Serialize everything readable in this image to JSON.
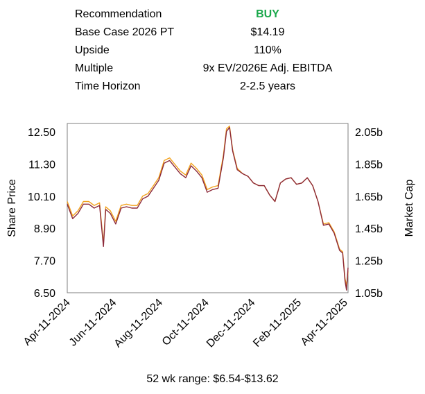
{
  "summary": {
    "rows": [
      {
        "label": "Recommendation",
        "value": "BUY",
        "color": "#1aa84b"
      },
      {
        "label": "Base Case 2026 PT",
        "value": "$14.19"
      },
      {
        "label": "Upside",
        "value": "110%"
      },
      {
        "label": "Multiple",
        "value": "9x EV/2026E Adj. EBITDA"
      },
      {
        "label": "Time Horizon",
        "value": "2-2.5 years"
      }
    ]
  },
  "footnote": "52 wk range: $6.54-$13.62",
  "chart_data": {
    "type": "line",
    "xlabel": "",
    "ylabel": "Share Price",
    "ylabel_right": "Market Cap",
    "ylim": [
      6.5,
      12.9
    ],
    "y_ticks": [
      "12.50",
      "11.30",
      "10.10",
      "8.90",
      "7.70",
      "6.50"
    ],
    "y_ticks_right": [
      "2.05b",
      "1.85b",
      "1.65b",
      "1.45b",
      "1.25b",
      "1.05b"
    ],
    "x_ticks": [
      "Apr-11-2024",
      "Jun-11-2024",
      "Aug-11-2024",
      "Oct-11-2024",
      "Dec-11-2024",
      "Feb-11-2025",
      "Apr-11-2025"
    ],
    "grid": false,
    "series": [
      {
        "color": "#f2a21d",
        "x": [
          "2024-04-11",
          "2024-04-18",
          "2024-04-25",
          "2024-05-02",
          "2024-05-09",
          "2024-05-16",
          "2024-05-23",
          "2024-05-28",
          "2024-05-31",
          "2024-06-06",
          "2024-06-13",
          "2024-06-20",
          "2024-06-27",
          "2024-07-04",
          "2024-07-11",
          "2024-07-18",
          "2024-07-25",
          "2024-08-01",
          "2024-08-08",
          "2024-08-15",
          "2024-08-22",
          "2024-08-29",
          "2024-09-05",
          "2024-09-12",
          "2024-09-19",
          "2024-09-26",
          "2024-10-03",
          "2024-10-10",
          "2024-10-17",
          "2024-10-24",
          "2024-10-31",
          "2024-11-04",
          "2024-11-08",
          "2024-11-12",
          "2024-11-18",
          "2024-11-25",
          "2024-12-02",
          "2024-12-09",
          "2024-12-16",
          "2024-12-23",
          "2024-12-30",
          "2025-01-06",
          "2025-01-13",
          "2025-01-20",
          "2025-01-27",
          "2025-02-03",
          "2025-02-10",
          "2025-02-17",
          "2025-02-24",
          "2025-03-03",
          "2025-03-10",
          "2025-03-17",
          "2025-03-24",
          "2025-03-31",
          "2025-04-04",
          "2025-04-07",
          "2025-04-09",
          "2025-04-11"
        ],
        "values": [
          9.95,
          9.4,
          9.6,
          9.95,
          9.95,
          9.8,
          9.9,
          8.35,
          9.75,
          9.6,
          9.2,
          9.8,
          9.85,
          9.8,
          9.8,
          10.15,
          10.25,
          10.55,
          10.85,
          11.5,
          11.6,
          11.35,
          11.1,
          10.95,
          11.4,
          11.2,
          10.95,
          10.4,
          10.5,
          10.55,
          11.7,
          12.7,
          12.8,
          11.9,
          11.2,
          11.0,
          10.9,
          10.65,
          10.55,
          10.55,
          10.2,
          9.95,
          10.65,
          10.8,
          10.85,
          10.6,
          10.65,
          10.85,
          10.55,
          9.95,
          9.1,
          9.15,
          8.8,
          8.15,
          8.05,
          7.05,
          6.75,
          7.3
        ]
      },
      {
        "color": "#8c2a3a",
        "x": [
          "2024-04-11",
          "2024-04-18",
          "2024-04-25",
          "2024-05-02",
          "2024-05-09",
          "2024-05-16",
          "2024-05-23",
          "2024-05-28",
          "2024-05-31",
          "2024-06-06",
          "2024-06-13",
          "2024-06-20",
          "2024-06-27",
          "2024-07-04",
          "2024-07-11",
          "2024-07-18",
          "2024-07-25",
          "2024-08-01",
          "2024-08-08",
          "2024-08-15",
          "2024-08-22",
          "2024-08-29",
          "2024-09-05",
          "2024-09-12",
          "2024-09-19",
          "2024-09-26",
          "2024-10-03",
          "2024-10-10",
          "2024-10-17",
          "2024-10-24",
          "2024-10-31",
          "2024-11-04",
          "2024-11-08",
          "2024-11-12",
          "2024-11-18",
          "2024-11-25",
          "2024-12-02",
          "2024-12-09",
          "2024-12-16",
          "2024-12-23",
          "2024-12-30",
          "2025-01-06",
          "2025-01-13",
          "2025-01-20",
          "2025-01-27",
          "2025-02-03",
          "2025-02-10",
          "2025-02-17",
          "2025-02-24",
          "2025-03-03",
          "2025-03-10",
          "2025-03-17",
          "2025-03-24",
          "2025-03-31",
          "2025-04-04",
          "2025-04-07",
          "2025-04-09",
          "2025-04-11"
        ],
        "values": [
          9.85,
          9.3,
          9.5,
          9.85,
          9.85,
          9.7,
          9.8,
          8.25,
          9.65,
          9.5,
          9.1,
          9.7,
          9.75,
          9.7,
          9.7,
          10.05,
          10.15,
          10.45,
          10.75,
          11.4,
          11.5,
          11.25,
          11.0,
          10.85,
          11.3,
          11.1,
          10.85,
          10.3,
          10.4,
          10.45,
          11.6,
          12.6,
          12.75,
          11.85,
          11.15,
          11.0,
          10.9,
          10.65,
          10.55,
          10.55,
          10.2,
          9.95,
          10.65,
          10.8,
          10.85,
          10.6,
          10.65,
          10.85,
          10.55,
          9.95,
          9.05,
          9.1,
          8.75,
          8.1,
          8.0,
          6.95,
          6.6,
          7.45
        ]
      }
    ]
  }
}
